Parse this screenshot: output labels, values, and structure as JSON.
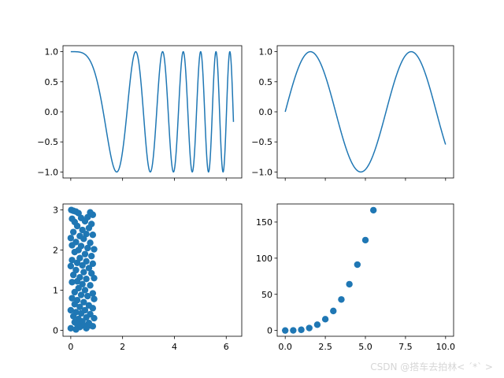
{
  "chart_data": [
    {
      "type": "line",
      "function": "cos(x^2)",
      "xlim": [
        -0.3,
        6.6
      ],
      "ylim": [
        -1.1,
        1.1
      ],
      "x_range": [
        0,
        6.28
      ],
      "yticks": [
        -1.0,
        -0.5,
        0.0,
        0.5,
        1.0
      ],
      "ytick_labels": [
        "−1.0",
        "−0.5",
        "0.0",
        "0.5",
        "1.0"
      ],
      "xticks": [
        0,
        2,
        4,
        6
      ],
      "xtick_labels_visible": false,
      "color": "#1f77b4"
    },
    {
      "type": "line",
      "function": "sin(x)",
      "xlim": [
        -0.5,
        10.5
      ],
      "ylim": [
        -1.1,
        1.1
      ],
      "x_range": [
        0,
        10
      ],
      "yticks": [
        -1.0,
        -0.5,
        0.0,
        0.5,
        1.0
      ],
      "ytick_labels": [
        "−1.0",
        "−0.5",
        "0.0",
        "0.5",
        "1.0"
      ],
      "xticks": [
        0,
        2.5,
        5,
        7.5,
        10
      ],
      "xtick_labels_visible": false,
      "color": "#1f77b4"
    },
    {
      "type": "scatter",
      "xlim": [
        -0.3,
        6.6
      ],
      "ylim": [
        -0.15,
        3.15
      ],
      "xticks": [
        0,
        2,
        4,
        6
      ],
      "xtick_labels": [
        "0",
        "2",
        "4",
        "6"
      ],
      "yticks": [
        0,
        1,
        2,
        3
      ],
      "ytick_labels": [
        "0",
        "1",
        "2",
        "3"
      ],
      "color": "#1f77b4",
      "points": [
        [
          0.02,
          3.0
        ],
        [
          0.1,
          2.98
        ],
        [
          0.2,
          2.96
        ],
        [
          0.3,
          2.92
        ],
        [
          0.75,
          2.94
        ],
        [
          0.85,
          2.88
        ],
        [
          0.65,
          2.82
        ],
        [
          0.05,
          2.78
        ],
        [
          0.4,
          2.8
        ],
        [
          0.15,
          2.7
        ],
        [
          0.55,
          2.72
        ],
        [
          0.8,
          2.65
        ],
        [
          0.25,
          2.6
        ],
        [
          0.7,
          2.55
        ],
        [
          0.45,
          2.5
        ],
        [
          0.1,
          2.45
        ],
        [
          0.6,
          2.4
        ],
        [
          0.35,
          2.35
        ],
        [
          0.85,
          2.38
        ],
        [
          0.0,
          2.3
        ],
        [
          0.5,
          2.28
        ],
        [
          0.2,
          2.2
        ],
        [
          0.75,
          2.18
        ],
        [
          0.05,
          2.12
        ],
        [
          0.4,
          2.1
        ],
        [
          0.65,
          2.05
        ],
        [
          0.3,
          2.0
        ],
        [
          0.9,
          2.02
        ],
        [
          0.15,
          1.95
        ],
        [
          0.55,
          1.9
        ],
        [
          0.8,
          1.85
        ],
        [
          0.35,
          1.8
        ],
        [
          0.05,
          1.75
        ],
        [
          0.6,
          1.72
        ],
        [
          0.25,
          1.68
        ],
        [
          0.85,
          1.66
        ],
        [
          0.45,
          1.62
        ],
        [
          0.0,
          1.6
        ],
        [
          0.7,
          1.55
        ],
        [
          0.2,
          1.5
        ],
        [
          0.5,
          1.45
        ],
        [
          0.8,
          1.42
        ],
        [
          0.1,
          1.38
        ],
        [
          0.35,
          1.32
        ],
        [
          0.9,
          1.3
        ],
        [
          0.6,
          1.28
        ],
        [
          0.25,
          1.22
        ],
        [
          0.05,
          1.2
        ],
        [
          0.45,
          1.15
        ],
        [
          0.75,
          1.12
        ],
        [
          0.3,
          1.05
        ],
        [
          0.55,
          1.0
        ],
        [
          0.15,
          0.95
        ],
        [
          0.85,
          0.92
        ],
        [
          0.4,
          0.88
        ],
        [
          0.65,
          0.85
        ],
        [
          0.05,
          0.8
        ],
        [
          0.25,
          0.75
        ],
        [
          0.9,
          0.78
        ],
        [
          0.5,
          0.7
        ],
        [
          0.15,
          0.65
        ],
        [
          0.7,
          0.62
        ],
        [
          0.35,
          0.58
        ],
        [
          0.85,
          0.55
        ],
        [
          0.0,
          0.5
        ],
        [
          0.55,
          0.5
        ],
        [
          0.2,
          0.45
        ],
        [
          0.4,
          0.42
        ],
        [
          0.75,
          0.4
        ],
        [
          0.1,
          0.35
        ],
        [
          0.6,
          0.32
        ],
        [
          0.3,
          0.28
        ],
        [
          0.9,
          0.3
        ],
        [
          0.45,
          0.22
        ],
        [
          0.15,
          0.2
        ],
        [
          0.7,
          0.18
        ],
        [
          0.25,
          0.15
        ],
        [
          0.5,
          0.12
        ],
        [
          0.85,
          0.1
        ],
        [
          0.35,
          0.08
        ],
        [
          0.0,
          0.05
        ],
        [
          0.6,
          0.05
        ],
        [
          0.2,
          0.02
        ],
        [
          0.75,
          0.12
        ]
      ]
    },
    {
      "type": "scatter",
      "xlim": [
        -0.5,
        10.5
      ],
      "ylim": [
        -8,
        175
      ],
      "xticks": [
        0,
        2.5,
        5,
        7.5,
        10
      ],
      "xtick_labels": [
        "0.0",
        "2.5",
        "5.0",
        "7.5",
        "10.0"
      ],
      "yticks": [
        0,
        50,
        100,
        150
      ],
      "ytick_labels": [
        "0",
        "50",
        "100",
        "150"
      ],
      "color": "#1f77b4",
      "x": [
        0.0,
        0.5,
        1.0,
        1.5,
        2.0,
        2.5,
        3.0,
        3.5,
        4.0,
        4.5,
        5.0,
        5.5
      ],
      "y": [
        0.0,
        0.1,
        1.0,
        3.4,
        8.0,
        15.6,
        27.0,
        42.9,
        64.0,
        91.1,
        125.0,
        166.4
      ]
    }
  ],
  "watermark": "CSDN @搭车去拍林< ´*` >"
}
